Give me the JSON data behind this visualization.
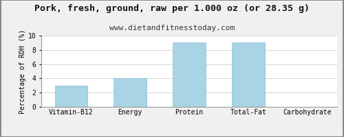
{
  "title": "Pork, fresh, ground, raw per 1.000 oz (or 28.35 g)",
  "subtitle": "www.dietandfitnesstoday.com",
  "categories": [
    "Vitamin-B12",
    "Energy",
    "Protein",
    "Total-Fat",
    "Carbohydrate"
  ],
  "values": [
    3.0,
    4.0,
    9.0,
    9.0,
    0.0
  ],
  "bar_color": "#a8d4e6",
  "ylabel": "Percentage of RDH (%)",
  "ylim": [
    0,
    10
  ],
  "yticks": [
    0,
    2,
    4,
    6,
    8,
    10
  ],
  "bg_color": "#f0f0f0",
  "plot_bg_color": "#ffffff",
  "border_color": "#999999",
  "grid_color": "#cccccc",
  "title_fontsize": 9.5,
  "subtitle_fontsize": 8,
  "ylabel_fontsize": 7,
  "tick_fontsize": 7,
  "bar_width": 0.55
}
